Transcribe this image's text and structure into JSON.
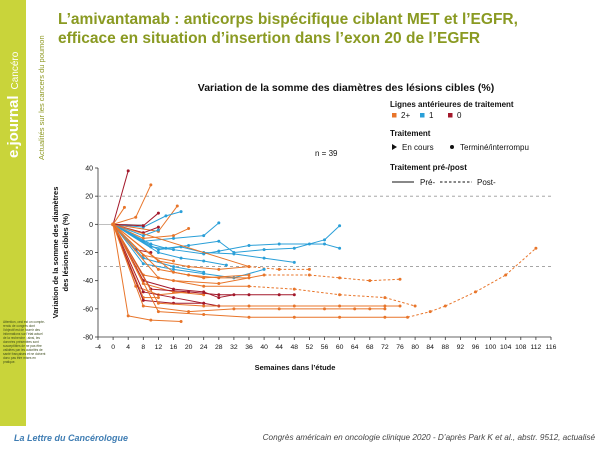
{
  "slide": {
    "title_line1": "L’amivantamab : anticorps bispécifique ciblant MET et l’EGFR,",
    "title_line2": "efficace en situation d’insertion dans l’exon 20 de l’EGFR",
    "brand": "e.journal",
    "brand_sub": "Cancéro",
    "tagline": "Actualités sur les cancers du poumon",
    "side_small": "Attention, ceci est un compte-rendu de congrès dont l’objectif est de fournir des informations sur l’état actuel de la recherche ; ainsi, les données présentées sont susceptibles de ne pas être validées par les autorités de santé françaises et ne doivent donc pas être mises en pratique.",
    "footer_left": "La Lettre du Cancérologue",
    "footer_right": "Congrès américain en oncologie clinique 2020 - D’après Park K et al., abstr. 9512, actualisé"
  },
  "chart_data": {
    "type": "line",
    "title": "Variation de la somme des diamètres des lésions cibles (%)",
    "xlabel": "Semaines dans l’étude",
    "ylabel": "Variation de la somme des diamètres des lésions cibles (%)",
    "xlim": [
      -4,
      116
    ],
    "ylim": [
      -80,
      40
    ],
    "xticks": [
      -4,
      0,
      4,
      8,
      12,
      16,
      20,
      24,
      28,
      32,
      36,
      40,
      44,
      48,
      52,
      56,
      60,
      64,
      68,
      72,
      76,
      80,
      84,
      88,
      92,
      96,
      100,
      104,
      108,
      112,
      116
    ],
    "yticks": [
      40,
      20,
      0,
      -20,
      -40,
      -60,
      -80
    ],
    "reference_lines": [
      20,
      -30
    ],
    "annotation": "n = 39",
    "legend": {
      "placement": "top-right",
      "lines_title": "Lignes antérieures de traitement",
      "lines_items": [
        {
          "label": "2+",
          "color": "#e8752a"
        },
        {
          "label": "1",
          "color": "#2a9fd8"
        },
        {
          "label": "0",
          "color": "#a3182b"
        }
      ],
      "status_title": "Traitement",
      "status_items": [
        {
          "label": "En cours",
          "marker": "arrow"
        },
        {
          "label": "Terminé/interrompu",
          "marker": "dot"
        }
      ],
      "prepost_title": "Traitement pré-/post",
      "prepost_items": [
        {
          "label": "Pré-",
          "style": "solid"
        },
        {
          "label": "Post-",
          "style": "dashed"
        }
      ]
    },
    "colors": {
      "2+": "#e8752a",
      "1": "#2a9fd8",
      "0": "#a3182b"
    },
    "series": [
      {
        "group": "0",
        "x": [
          0,
          4
        ],
        "y": [
          0,
          38
        ],
        "style": "solid"
      },
      {
        "group": "2+",
        "x": [
          0,
          6,
          10
        ],
        "y": [
          0,
          5,
          28
        ],
        "style": "solid"
      },
      {
        "group": "2+",
        "x": [
          0,
          3
        ],
        "y": [
          0,
          12
        ],
        "style": "solid"
      },
      {
        "group": "2+",
        "x": [
          0,
          12,
          17
        ],
        "y": [
          0,
          -5,
          13
        ],
        "style": "solid"
      },
      {
        "group": "1",
        "x": [
          0,
          8,
          14,
          18
        ],
        "y": [
          0,
          -2,
          6,
          9
        ],
        "style": "solid"
      },
      {
        "group": "0",
        "x": [
          0,
          8,
          12
        ],
        "y": [
          0,
          -1,
          8
        ],
        "style": "solid"
      },
      {
        "group": "0",
        "x": [
          0,
          8,
          12
        ],
        "y": [
          0,
          -6,
          -2
        ],
        "style": "solid"
      },
      {
        "group": "1",
        "x": [
          0,
          8,
          12
        ],
        "y": [
          0,
          -8,
          -4
        ],
        "style": "solid"
      },
      {
        "group": "2+",
        "x": [
          0,
          8,
          16,
          20
        ],
        "y": [
          0,
          -10,
          -8,
          -3
        ],
        "style": "solid"
      },
      {
        "group": "1",
        "x": [
          0,
          8,
          16,
          24,
          28
        ],
        "y": [
          0,
          -12,
          -10,
          -8,
          1
        ],
        "style": "solid"
      },
      {
        "group": "1",
        "x": [
          0,
          10,
          14,
          20,
          28,
          32,
          40,
          48,
          56,
          60
        ],
        "y": [
          0,
          -14,
          -17,
          -15,
          -12,
          -20,
          -18,
          -17,
          -11,
          -1
        ],
        "style": "solid"
      },
      {
        "group": "1",
        "x": [
          0,
          10,
          16,
          24,
          28,
          36,
          44,
          52,
          56,
          60
        ],
        "y": [
          0,
          -16,
          -18,
          -21,
          -19,
          -15,
          -14,
          -14,
          -14,
          -17
        ],
        "style": "solid"
      },
      {
        "group": "1",
        "x": [
          0,
          12,
          18,
          24,
          32,
          40,
          48
        ],
        "y": [
          0,
          -18,
          -16,
          -20,
          -21,
          -24,
          -27
        ],
        "style": "solid"
      },
      {
        "group": "1",
        "x": [
          0,
          12,
          18,
          24,
          30
        ],
        "y": [
          0,
          -20,
          -24,
          -26,
          -29
        ],
        "style": "solid"
      },
      {
        "group": "0",
        "x": [
          0,
          6,
          10
        ],
        "y": [
          0,
          -18,
          -20
        ],
        "style": "solid"
      },
      {
        "group": "2+",
        "x": [
          0,
          8,
          16
        ],
        "y": [
          0,
          -22,
          -26
        ],
        "style": "solid"
      },
      {
        "group": "1",
        "x": [
          0,
          8,
          16,
          24
        ],
        "y": [
          0,
          -24,
          -30,
          -34
        ],
        "style": "solid"
      },
      {
        "group": "2+",
        "x": [
          0,
          12,
          20,
          28,
          36
        ],
        "y": [
          0,
          -26,
          -30,
          -32,
          -30
        ],
        "style": "solid"
      },
      {
        "group": "2+",
        "x": [
          0,
          36,
          44,
          52
        ],
        "y": [
          0,
          -30,
          -32,
          -32
        ],
        "style": "dashed_after_16"
      },
      {
        "group": "1",
        "x": [
          0,
          8,
          16,
          24,
          32,
          40
        ],
        "y": [
          0,
          -28,
          -32,
          -35,
          -38,
          -32
        ],
        "style": "solid"
      },
      {
        "group": "2+",
        "x": [
          0,
          12,
          20,
          28,
          36
        ],
        "y": [
          0,
          -32,
          -36,
          -38,
          -38
        ],
        "style": "solid"
      },
      {
        "group": "2+",
        "x": [
          0,
          16,
          24,
          36
        ],
        "y": [
          0,
          -34,
          -38,
          -36
        ],
        "style": "solid"
      },
      {
        "group": "2+",
        "x": [
          0,
          8,
          16,
          28,
          40,
          52,
          60,
          68,
          76
        ],
        "y": [
          0,
          -36,
          -40,
          -42,
          -36,
          -36,
          -38,
          -40,
          -39
        ],
        "style": "dashed_after_36"
      },
      {
        "group": "2+",
        "x": [
          0,
          12,
          24,
          36,
          48,
          60,
          72,
          80
        ],
        "y": [
          0,
          -38,
          -44,
          -44,
          -46,
          -50,
          -52,
          -58
        ],
        "style": "dashed_after_36"
      },
      {
        "group": "2+",
        "x": [
          0,
          8,
          16,
          24
        ],
        "y": [
          0,
          -42,
          -48,
          -50
        ],
        "style": "solid"
      },
      {
        "group": "2+",
        "x": [
          0,
          6,
          12,
          20
        ],
        "y": [
          0,
          -44,
          -50,
          -48
        ],
        "style": "solid"
      },
      {
        "group": "0",
        "x": [
          0,
          8,
          16,
          24,
          28,
          32
        ],
        "y": [
          0,
          -40,
          -46,
          -48,
          -52,
          -50
        ],
        "style": "solid"
      },
      {
        "group": "0",
        "x": [
          0,
          10,
          20,
          28,
          36,
          44,
          48
        ],
        "y": [
          0,
          -46,
          -48,
          -50,
          -50,
          -50,
          -50
        ],
        "style": "solid"
      },
      {
        "group": "0",
        "x": [
          0,
          8,
          16,
          24
        ],
        "y": [
          0,
          -48,
          -52,
          -56
        ],
        "style": "solid"
      },
      {
        "group": "2+",
        "x": [
          0,
          8,
          12
        ],
        "y": [
          0,
          -52,
          -52
        ],
        "style": "solid"
      },
      {
        "group": "0",
        "x": [
          0,
          8,
          16,
          24,
          28
        ],
        "y": [
          0,
          -54,
          -56,
          -56,
          -58
        ],
        "style": "solid"
      },
      {
        "group": "2+",
        "x": [
          0,
          12,
          24,
          36,
          48,
          60,
          72,
          76
        ],
        "y": [
          0,
          -56,
          -58,
          -58,
          -58,
          -58,
          -58,
          -58
        ],
        "style": "solid"
      },
      {
        "group": "2+",
        "x": [
          0,
          8,
          20,
          32,
          44,
          56,
          64,
          68,
          72
        ],
        "y": [
          0,
          -58,
          -62,
          -60,
          -60,
          -60,
          -60,
          -60,
          -60
        ],
        "style": "solid"
      },
      {
        "group": "2+",
        "x": [
          0,
          12,
          24,
          36,
          48,
          60,
          72,
          78,
          84,
          88,
          96,
          104,
          112
        ],
        "y": [
          0,
          -62,
          -64,
          -66,
          -66,
          -66,
          -66,
          -66,
          -62,
          -58,
          -48,
          -36,
          -17
        ],
        "style": "dashed_after_76"
      },
      {
        "group": "2+",
        "x": [
          0,
          4,
          10,
          18
        ],
        "y": [
          0,
          -65,
          -68,
          -69
        ],
        "style": "solid"
      }
    ]
  }
}
